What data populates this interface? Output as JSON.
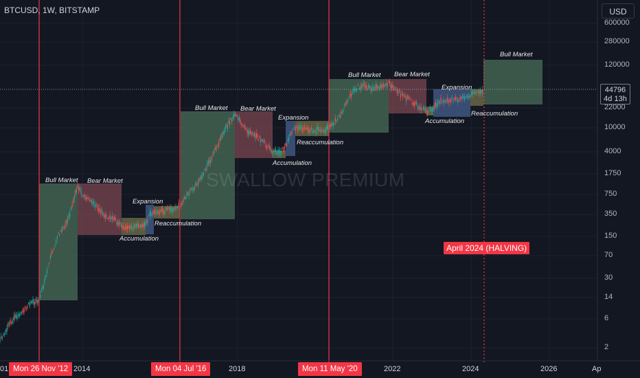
{
  "header": {
    "symbol": "BTCUSD, 1W, BITSTAMP",
    "currency": "USD"
  },
  "price_axis": {
    "labels": [
      "600000",
      "280000",
      "120000",
      "22000",
      "10000",
      "4000",
      "1750",
      "750",
      "350",
      "150",
      "70",
      "30",
      "14",
      "6",
      "2"
    ]
  },
  "last_price": {
    "value": "44796",
    "countdown": "4d 13h"
  },
  "time_axis": {
    "labels": [
      "01",
      "2014",
      "2018",
      "2022",
      "2024",
      "2026",
      "Ap"
    ]
  },
  "date_markers": [
    "Mon 26 Nov '12",
    "Mon 04 Jul '16",
    "Mon 11 May '20"
  ],
  "halving_label": "April 2024 (HALVING)",
  "watermark": "SWALLOW PREMIUM",
  "phase_labels": {
    "c1": {
      "bull": "Bull Market",
      "bear": "Bear Market",
      "accum": "Accumulation",
      "exp": "Expansion",
      "reacc": "Reaccumulation"
    },
    "c2": {
      "bull": "Bull Market",
      "bear": "Bear Market",
      "accum": "Accumulation",
      "exp": "Expansion",
      "reacc": "Reaccumulation"
    },
    "c3": {
      "bull": "Bull Market",
      "bear": "Bear Market",
      "accum": "Accumulation",
      "exp": "Expansion",
      "reacc": "Reaccumulation"
    },
    "c4": {
      "bull": "Bull Market"
    }
  },
  "colors": {
    "background": "#131722",
    "bull_zone": "#4a6d58",
    "bear_zone": "#7a4751",
    "accum_zone": "#6e6a47",
    "expansion_zone": "#3f577f",
    "up_candle": "#26a69a",
    "down_candle": "#ef5350",
    "marker_red": "#f23645"
  }
}
